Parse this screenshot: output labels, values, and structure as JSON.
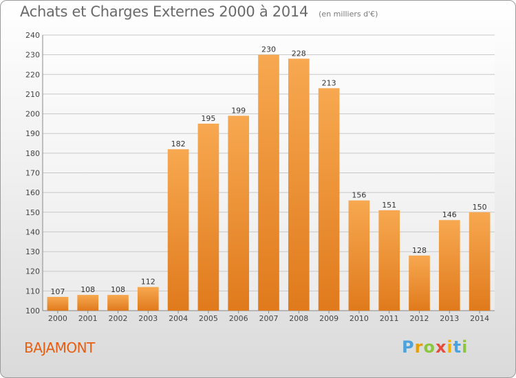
{
  "header": {
    "title": "Achats et Charges Externes 2000 à 2014",
    "subtitle": "(en milliers d'€)"
  },
  "footer": {
    "location": "BAJAMONT",
    "brand": {
      "letters": [
        "P",
        "r",
        "o",
        "x",
        "i",
        "t",
        "i"
      ],
      "colors": [
        "#4aa3df",
        "#e8a000",
        "#8cc63f",
        "#e84c3d",
        "#f0b400",
        "#4aa3df",
        "#8cc63f"
      ]
    }
  },
  "colors": {
    "bar_top": "#f7a850",
    "bar_bottom": "#e07a1c",
    "grid": "#c8c8c8",
    "axis": "#888888",
    "location_text": "#e85d10"
  },
  "chart_data": {
    "type": "bar",
    "categories": [
      "2000",
      "2001",
      "2002",
      "2003",
      "2004",
      "2005",
      "2006",
      "2007",
      "2008",
      "2009",
      "2010",
      "2011",
      "2012",
      "2013",
      "2014"
    ],
    "values": [
      107,
      108,
      108,
      112,
      182,
      195,
      199,
      230,
      228,
      213,
      156,
      151,
      128,
      146,
      150
    ],
    "ylim": [
      100,
      240
    ],
    "yticks": [
      100,
      110,
      120,
      130,
      140,
      150,
      160,
      170,
      180,
      190,
      200,
      210,
      220,
      230,
      240
    ],
    "grid": true
  }
}
